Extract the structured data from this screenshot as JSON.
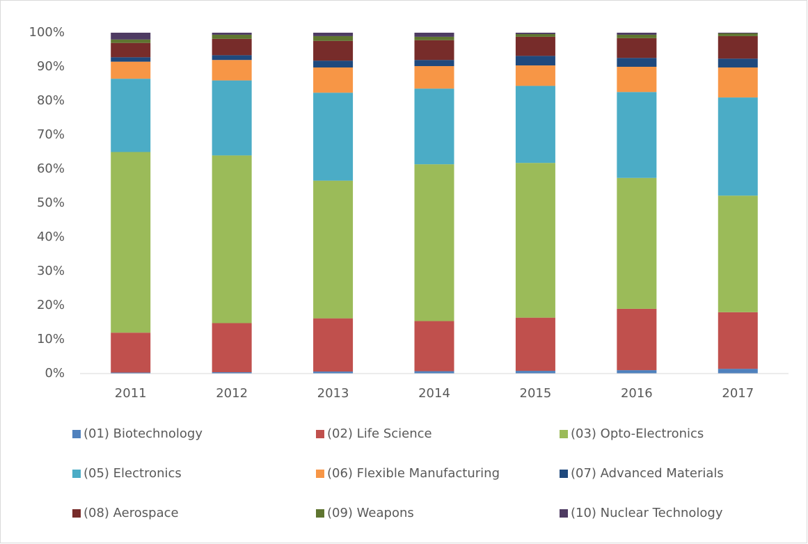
{
  "chart_data": {
    "type": "stacked_bar",
    "categories": [
      "2011",
      "2012",
      "2013",
      "2014",
      "2015",
      "2016",
      "2017"
    ],
    "series": [
      {
        "name": "(01) Biotechnology",
        "color": "#4f81bd",
        "values": [
          0.3,
          0.4,
          0.6,
          0.7,
          0.8,
          1,
          1.4
        ]
      },
      {
        "name": "(02) Life Science",
        "color": "#c0504d",
        "values": [
          11.7,
          14.4,
          15.6,
          14.7,
          15.6,
          18,
          16.6
        ]
      },
      {
        "name": "(03) Opto-Electronics",
        "color": "#9bbb59",
        "values": [
          53,
          49.2,
          40.4,
          46,
          45.4,
          38.4,
          34.2
        ]
      },
      {
        "name": "(05) Electronics",
        "color": "#4bacc6",
        "values": [
          21.5,
          22,
          25.8,
          22.2,
          22.6,
          25.2,
          28.8
        ]
      },
      {
        "name": "(06) Flexible Manufacturing",
        "color": "#f79646",
        "values": [
          5,
          6,
          7.4,
          6.6,
          6,
          7.4,
          8.8
        ]
      },
      {
        "name": "(07) Advanced Materials",
        "color": "#1f497d",
        "values": [
          1.3,
          1.4,
          2,
          1.8,
          2.8,
          2.6,
          2.6
        ]
      },
      {
        "name": "(08) Aerospace",
        "color": "#772c2a",
        "values": [
          4.2,
          4.8,
          5.8,
          5.8,
          5.6,
          5.8,
          6.6
        ]
      },
      {
        "name": "(09) Weapons",
        "color": "#5f7530",
        "values": [
          1,
          1.2,
          1.4,
          1,
          0.8,
          1,
          0.8
        ]
      },
      {
        "name": "(10) Nuclear Technology",
        "color": "#4e3b62",
        "values": [
          2,
          0.6,
          1,
          1.2,
          0.4,
          0.6,
          0.2
        ]
      }
    ],
    "ylim": [
      0,
      100
    ],
    "yticks": [
      {
        "value": 0,
        "label": "0%"
      },
      {
        "value": 10,
        "label": "10%"
      },
      {
        "value": 20,
        "label": "20%"
      },
      {
        "value": 30,
        "label": "30%"
      },
      {
        "value": 40,
        "label": "40%"
      },
      {
        "value": 50,
        "label": "50%"
      },
      {
        "value": 60,
        "label": "60%"
      },
      {
        "value": 70,
        "label": "70%"
      },
      {
        "value": 80,
        "label": "80%"
      },
      {
        "value": 90,
        "label": "90%"
      },
      {
        "value": 100,
        "label": "100%"
      }
    ],
    "grid": false,
    "legend": "bottom"
  }
}
